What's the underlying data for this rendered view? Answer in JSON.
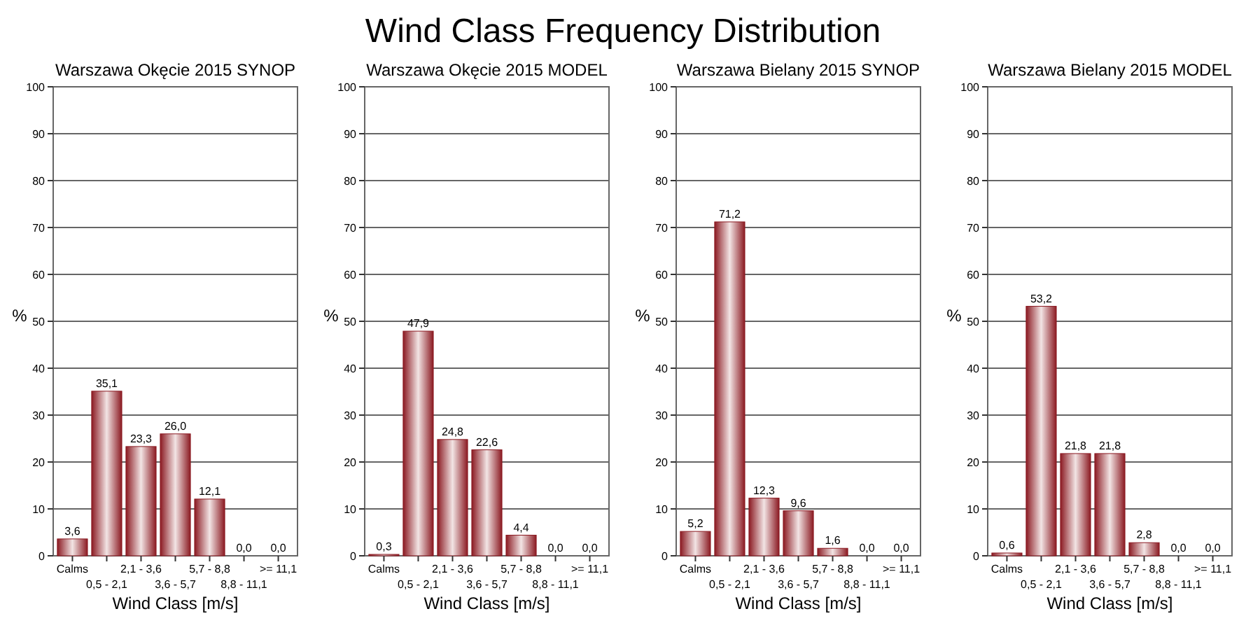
{
  "chart_data": [
    {
      "type": "bar",
      "title": "Warszawa Okęcie 2015 SYNOP",
      "annotations": [
        "Wind Class Frequency Distribution"
      ],
      "xlabel": "Wind Class [m/s]",
      "ylabel": "%",
      "categories": [
        "Calms",
        "0,5 -  2,1",
        "2,1 -  3,6",
        "3,6 -  5,7",
        "5,7 -  8,8",
        "8,8 - 11,1",
        ">= 11,1"
      ],
      "values": [
        3.6,
        35.1,
        23.3,
        26.0,
        12.1,
        0.0,
        0.0
      ],
      "value_labels": [
        "3,6",
        "35,1",
        "23,3",
        "26,0",
        "12,1",
        "0,0",
        "0,0"
      ],
      "color": "#8b1a22",
      "ylim": [
        0,
        100
      ],
      "yticks": [
        0,
        10,
        20,
        30,
        40,
        50,
        60,
        70,
        80,
        90,
        100
      ],
      "grid": "y"
    },
    {
      "type": "bar",
      "title": "Warszawa Okęcie 2015 MODEL",
      "xlabel": "Wind Class [m/s]",
      "ylabel": "%",
      "categories": [
        "Calms",
        "0,5 -  2,1",
        "2,1 -  3,6",
        "3,6 -  5,7",
        "5,7 -  8,8",
        "8,8 - 11,1",
        ">= 11,1"
      ],
      "values": [
        0.3,
        47.9,
        24.8,
        22.6,
        4.4,
        0.0,
        0.0
      ],
      "value_labels": [
        "0,3",
        "47,9",
        "24,8",
        "22,6",
        "4,4",
        "0,0",
        "0,0"
      ],
      "color": "#8b1a22",
      "ylim": [
        0,
        100
      ],
      "yticks": [
        0,
        10,
        20,
        30,
        40,
        50,
        60,
        70,
        80,
        90,
        100
      ],
      "grid": "y"
    },
    {
      "type": "bar",
      "title": "Warszawa Bielany 2015 SYNOP",
      "xlabel": "Wind Class [m/s]",
      "ylabel": "%",
      "categories": [
        "Calms",
        "0,5 -  2,1",
        "2,1 -  3,6",
        "3,6 -  5,7",
        "5,7 -  8,8",
        "8,8 - 11,1",
        ">= 11,1"
      ],
      "values": [
        5.2,
        71.2,
        12.3,
        9.6,
        1.6,
        0.0,
        0.0
      ],
      "value_labels": [
        "5,2",
        "71,2",
        "12,3",
        "9,6",
        "1,6",
        "0,0",
        "0,0"
      ],
      "color": "#8b1a22",
      "ylim": [
        0,
        100
      ],
      "yticks": [
        0,
        10,
        20,
        30,
        40,
        50,
        60,
        70,
        80,
        90,
        100
      ],
      "grid": "y"
    },
    {
      "type": "bar",
      "title": "Warszawa Bielany 2015 MODEL",
      "xlabel": "Wind Class [m/s]",
      "ylabel": "%",
      "categories": [
        "Calms",
        "0,5 -  2,1",
        "2,1 -  3,6",
        "3,6 -  5,7",
        "5,7 -  8,8",
        "8,8 - 11,1",
        ">= 11,1"
      ],
      "values": [
        0.6,
        53.2,
        21.8,
        21.8,
        2.8,
        0.0,
        0.0
      ],
      "value_labels": [
        "0,6",
        "53,2",
        "21,8",
        "21,8",
        "2,8",
        "0,0",
        "0,0"
      ],
      "color": "#8b1a22",
      "ylim": [
        0,
        100
      ],
      "yticks": [
        0,
        10,
        20,
        30,
        40,
        50,
        60,
        70,
        80,
        90,
        100
      ],
      "grid": "y"
    }
  ]
}
